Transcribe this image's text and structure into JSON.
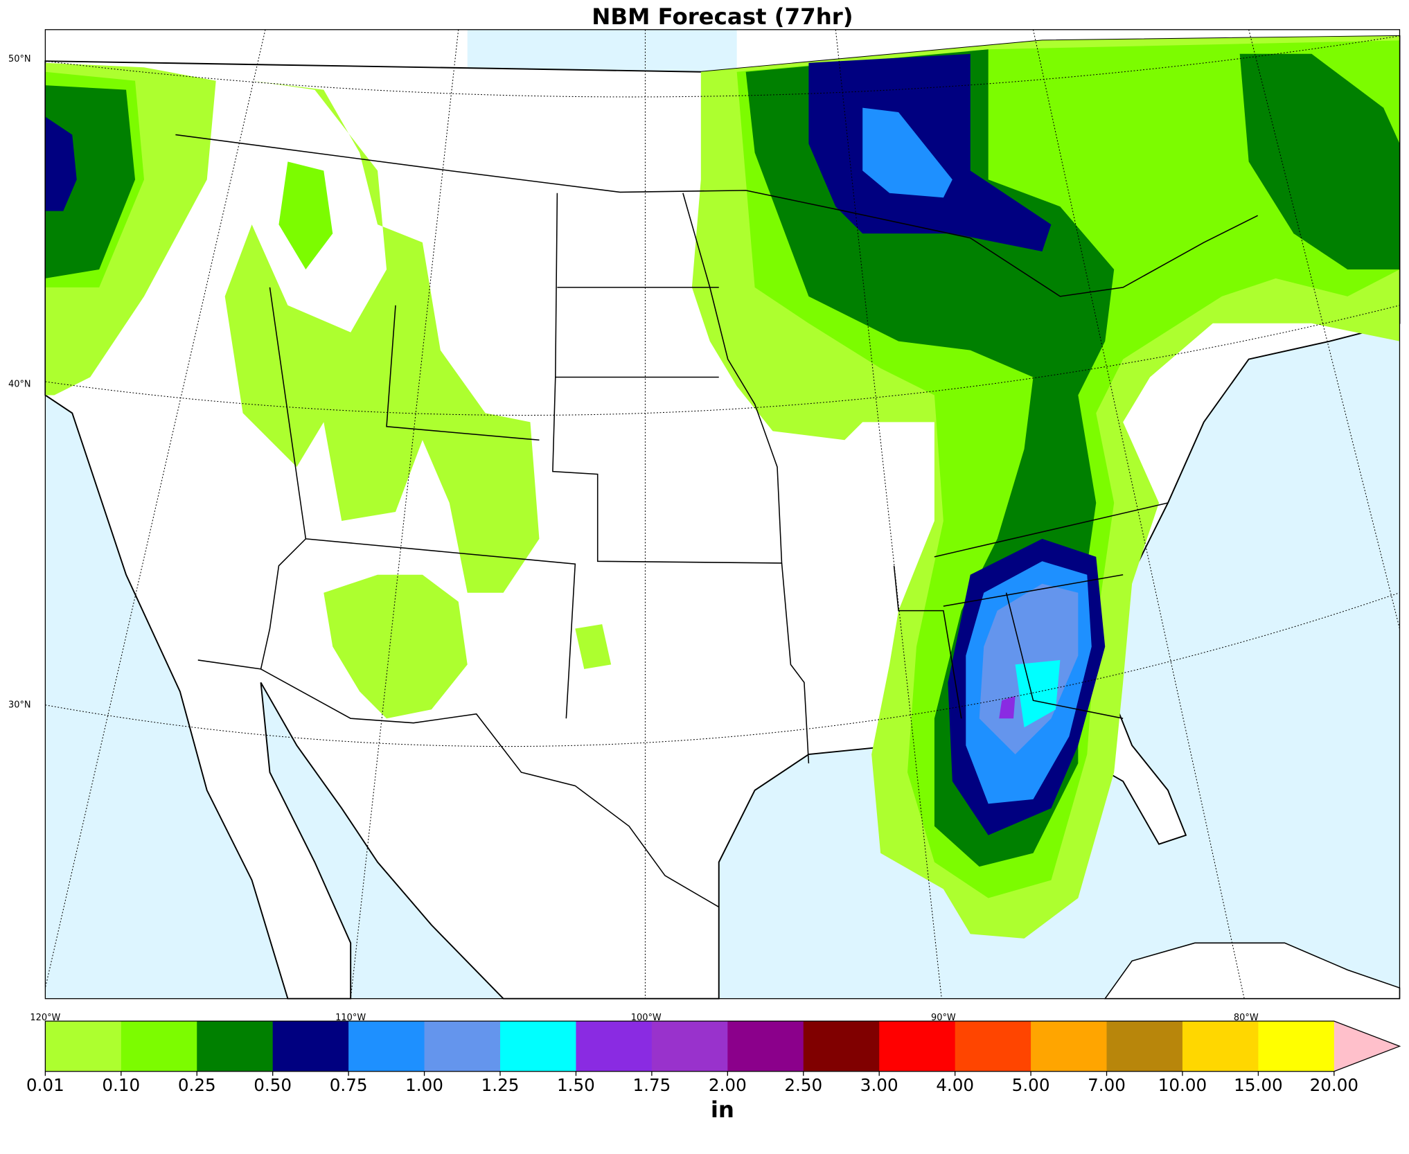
{
  "title": "NBM Forecast (77hr)",
  "lat_labels": [
    "50°N",
    "40°N",
    "30°N"
  ],
  "lon_labels": [
    "120°W",
    "110°W",
    "100°W",
    "90°W",
    "80°W"
  ],
  "colorbar": {
    "label": "in",
    "levels": [
      {
        "value": 0.01,
        "label": "0.01"
      },
      {
        "value": 0.1,
        "label": "0.10"
      },
      {
        "value": 0.25,
        "label": "0.25"
      },
      {
        "value": 0.5,
        "label": "0.50"
      },
      {
        "value": 0.75,
        "label": "0.75"
      },
      {
        "value": 1,
        "label": "1.00"
      },
      {
        "value": 1.25,
        "label": "1.25"
      },
      {
        "value": 1.5,
        "label": "1.50"
      },
      {
        "value": 1.75,
        "label": "1.75"
      },
      {
        "value": 2,
        "label": "2.00"
      },
      {
        "value": 2.5,
        "label": "2.50"
      },
      {
        "value": 3,
        "label": "3.00"
      },
      {
        "value": 4,
        "label": "4.00"
      },
      {
        "value": 5,
        "label": "5.00"
      },
      {
        "value": 7,
        "label": "7.00"
      },
      {
        "value": 10,
        "label": "10.00"
      },
      {
        "value": 15,
        "label": "15.00"
      },
      {
        "value": 20,
        "label": "20.00"
      }
    ],
    "colors": [
      "#adff2f",
      "#7cfc00",
      "#008000",
      "#000080",
      "#1e90ff",
      "#6495ed",
      "#00ffff",
      "#8a2be2",
      "#9932cc",
      "#8b008b",
      "#800000",
      "#ff0000",
      "#ff4500",
      "#ffa500",
      "#b8860b",
      "#ffd700",
      "#ffff00"
    ],
    "extend_color": "#ffc0cb"
  }
}
